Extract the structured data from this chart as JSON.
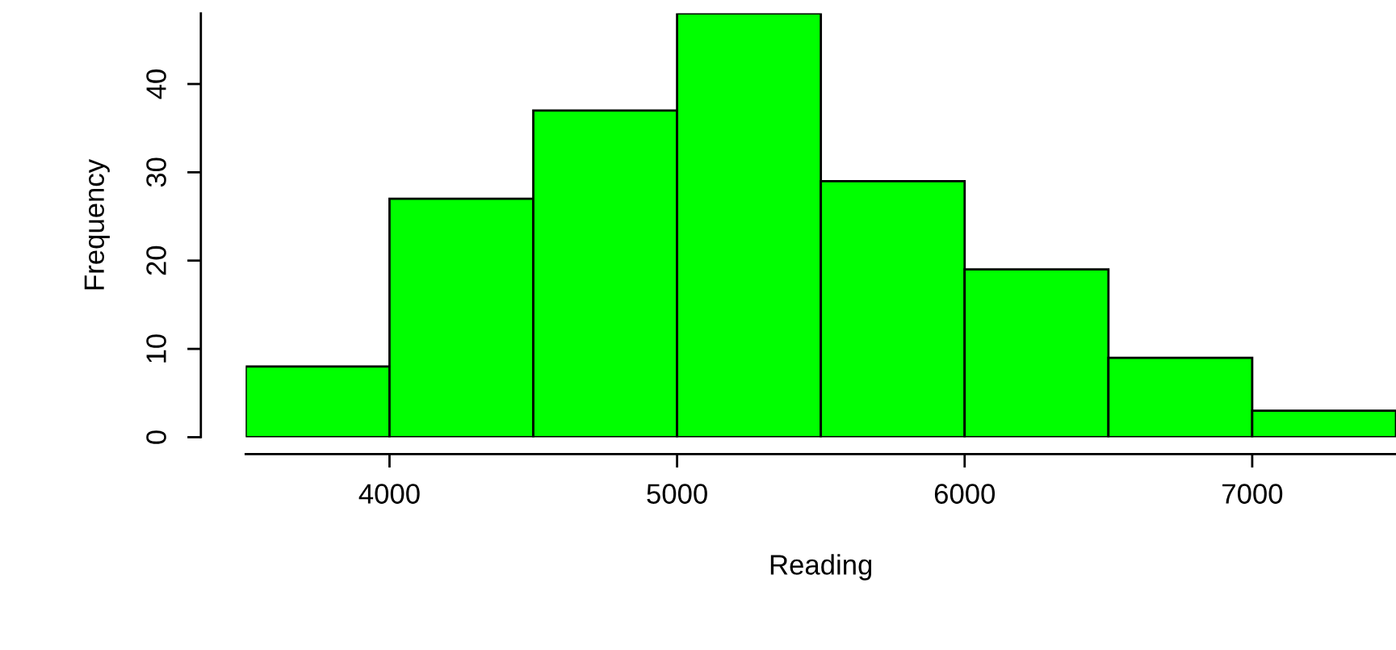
{
  "chart_data": {
    "type": "histogram",
    "xlabel": "Reading",
    "ylabel": "Frequency",
    "bins": [
      3500,
      4000,
      4500,
      5000,
      5500,
      6000,
      6500,
      7000,
      7500
    ],
    "values": [
      8,
      27,
      37,
      48,
      29,
      19,
      9,
      3
    ],
    "color": "#00ff00",
    "xlim": [
      3500,
      7500
    ],
    "ylim": [
      0,
      48
    ],
    "xticks": [
      4000,
      5000,
      6000,
      7000
    ],
    "yticks": [
      0,
      10,
      20,
      30,
      40
    ],
    "grid": false
  }
}
